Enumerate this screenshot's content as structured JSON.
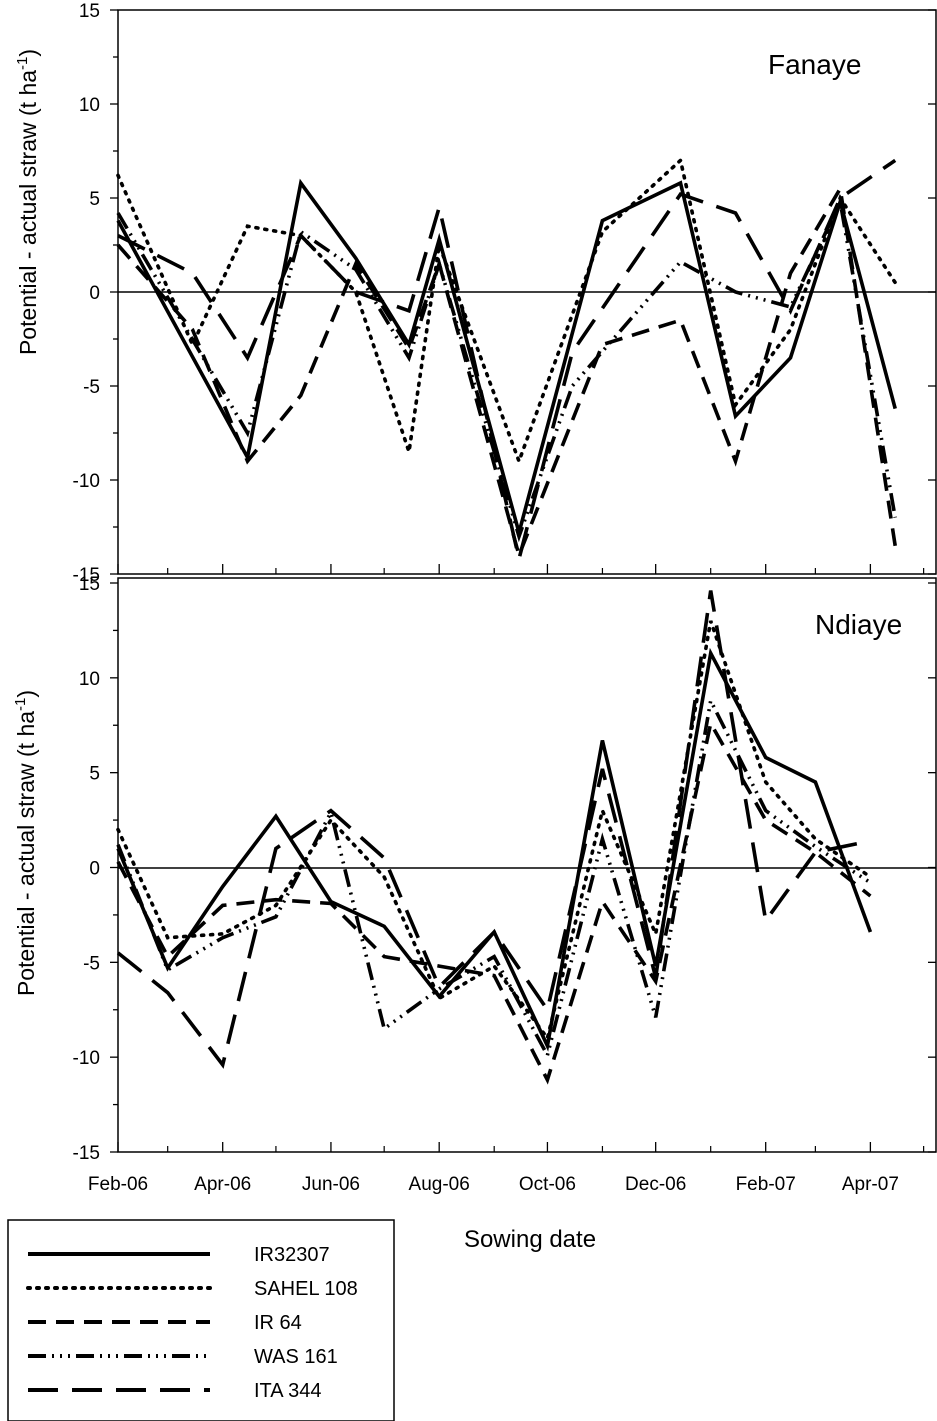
{
  "x_axis_label": "Sowing date",
  "chart_data": [
    {
      "type": "line",
      "title": "Fanaye",
      "ylabel": "Potential - actual straw  (t ha-1)",
      "ylim": [
        -15,
        15
      ],
      "yticks": [
        -15,
        -10,
        -5,
        0,
        5,
        10,
        15
      ],
      "xticks": [
        "Feb-06",
        "Apr-06",
        "Jun-06",
        "Aug-06",
        "Oct-06",
        "Dec-06",
        "Feb-07",
        "Apr-07"
      ],
      "series": [
        {
          "name": "IR32307",
          "x": [
            "2006-02-01",
            "2006-04-15",
            "2006-05-15",
            "2006-06-15",
            "2006-07-15",
            "2006-08-01",
            "2006-09-15",
            "2006-11-01",
            "2006-12-15",
            "2007-01-15",
            "2007-02-15",
            "2007-03-15",
            "2007-04-15"
          ],
          "values": [
            3.8,
            -8.8,
            5.8,
            1.8,
            -2.8,
            2.8,
            -12.8,
            3.8,
            5.8,
            -6.6,
            -3.5,
            4.8,
            -6.2
          ]
        },
        {
          "name": "SAHEL 108",
          "x": [
            "2006-02-01",
            "2006-03-15",
            "2006-04-15",
            "2006-05-15",
            "2006-06-15",
            "2006-07-15",
            "2006-08-01",
            "2006-09-15",
            "2006-11-01",
            "2006-12-15",
            "2007-01-15",
            "2007-02-15",
            "2007-03-15",
            "2007-04-15"
          ],
          "values": [
            6.2,
            -2.8,
            3.5,
            3.0,
            0.0,
            -8.5,
            2.5,
            -9.0,
            3.2,
            7.0,
            -6.0,
            -2.0,
            5.0,
            0.5
          ]
        },
        {
          "name": "IR 64",
          "x": [
            "2006-02-01",
            "2006-03-15",
            "2006-04-15",
            "2006-05-15",
            "2006-06-15",
            "2006-07-15",
            "2006-08-01",
            "2006-09-15",
            "2006-11-01",
            "2006-12-15",
            "2007-01-15",
            "2007-02-15",
            "2007-03-15",
            "2007-04-15"
          ],
          "values": [
            2.5,
            -2.0,
            -9.0,
            -5.5,
            1.5,
            -3.0,
            1.5,
            -14.0,
            -2.8,
            -1.5,
            -9.0,
            1.0,
            5.5,
            -13.5
          ]
        },
        {
          "name": "WAS 161",
          "x": [
            "2006-02-01",
            "2006-04-15",
            "2006-05-15",
            "2006-06-15",
            "2006-07-15",
            "2006-08-01",
            "2006-09-15",
            "2006-10-15",
            "2006-12-15",
            "2007-01-15",
            "2007-02-15",
            "2007-03-15",
            "2007-04-15"
          ],
          "values": [
            4.2,
            -7.5,
            3.2,
            1.2,
            -3.5,
            1.5,
            -13.0,
            -5.0,
            1.6,
            0.0,
            -0.8,
            4.8,
            -12.0
          ]
        },
        {
          "name": "ITA 344",
          "x": [
            "2006-02-01",
            "2006-03-15",
            "2006-04-15",
            "2006-05-15",
            "2006-06-15",
            "2006-07-15",
            "2006-08-01",
            "2006-09-15",
            "2006-10-15",
            "2006-12-15",
            "2007-01-15",
            "2007-02-15",
            "2007-03-15",
            "2007-04-15"
          ],
          "values": [
            3.0,
            1.0,
            -3.5,
            3.0,
            0.0,
            -1.0,
            4.5,
            -14.2,
            -3.2,
            5.2,
            4.2,
            -1.0,
            5.0,
            7.0
          ]
        }
      ]
    },
    {
      "type": "line",
      "title": "Ndiaye",
      "ylabel": "Potential - actual straw (t ha-1)",
      "ylim": [
        -15,
        15
      ],
      "yticks": [
        -15,
        -10,
        -5,
        0,
        5,
        10,
        15
      ],
      "xticks": [
        "Feb-06",
        "Apr-06",
        "Jun-06",
        "Aug-06",
        "Oct-06",
        "Dec-06",
        "Feb-07",
        "Apr-07"
      ],
      "series": [
        {
          "name": "IR32307",
          "x": [
            "2006-02-01",
            "2006-03-01",
            "2006-04-01",
            "2006-05-01",
            "2006-06-01",
            "2006-07-01",
            "2006-08-01",
            "2006-09-01",
            "2006-10-01",
            "2006-11-01",
            "2006-12-01",
            "2007-01-01",
            "2007-02-01",
            "2007-03-01",
            "2007-04-01"
          ],
          "values": [
            1.0,
            -5.3,
            -1.0,
            2.7,
            -1.8,
            -3.1,
            -6.8,
            -3.4,
            -9.4,
            6.7,
            -5.2,
            11.3,
            5.8,
            4.5,
            -3.4
          ]
        },
        {
          "name": "SAHEL 108",
          "x": [
            "2006-02-01",
            "2006-03-01",
            "2006-04-01",
            "2006-05-01",
            "2006-06-01",
            "2006-07-01",
            "2006-08-01",
            "2006-09-01",
            "2006-10-01",
            "2006-11-01",
            "2006-12-01",
            "2007-01-01",
            "2007-02-01",
            "2007-03-01",
            "2007-04-01"
          ],
          "values": [
            2.0,
            -3.7,
            -3.5,
            -2.0,
            2.5,
            -0.5,
            -6.9,
            -5.2,
            -9.0,
            3.0,
            -3.5,
            13.0,
            4.5,
            1.5,
            -0.5
          ]
        },
        {
          "name": "IR 64",
          "x": [
            "2006-02-01",
            "2006-03-01",
            "2006-04-01",
            "2006-05-01",
            "2006-06-01",
            "2006-07-01",
            "2006-08-01",
            "2006-09-01",
            "2006-10-01",
            "2006-11-01",
            "2006-12-01",
            "2007-01-01",
            "2007-02-01",
            "2007-03-01",
            "2007-04-01"
          ],
          "values": [
            0.3,
            -4.7,
            -2.0,
            -1.7,
            -1.9,
            -4.7,
            -5.2,
            -5.7,
            -11.2,
            -1.8,
            -6.0,
            7.6,
            2.5,
            0.8,
            -1.5
          ]
        },
        {
          "name": "WAS 161",
          "x": [
            "2006-02-01",
            "2006-03-01",
            "2006-04-01",
            "2006-05-01",
            "2006-06-01",
            "2006-07-01",
            "2006-08-01",
            "2006-09-01",
            "2006-10-01",
            "2006-11-01",
            "2006-12-01",
            "2007-01-01",
            "2007-02-01",
            "2007-03-01",
            "2007-04-01"
          ],
          "values": [
            1.2,
            -5.4,
            -3.7,
            -2.6,
            2.9,
            -8.5,
            -6.4,
            -4.7,
            -9.9,
            1.5,
            -7.9,
            8.8,
            3.0,
            1.1,
            -0.8
          ]
        },
        {
          "name": "ITA 344",
          "x": [
            "2006-02-01",
            "2006-03-01",
            "2006-04-01",
            "2006-05-01",
            "2006-06-01",
            "2006-07-01",
            "2006-08-01",
            "2006-09-01",
            "2006-10-01",
            "2006-11-01",
            "2006-12-01",
            "2007-01-01",
            "2007-02-01",
            "2007-03-01",
            "2007-04-01"
          ],
          "values": [
            -4.5,
            -6.6,
            -10.4,
            1.0,
            3.0,
            0.5,
            -6.3,
            -3.4,
            -7.5,
            5.2,
            -5.8,
            14.6,
            -2.8,
            0.8,
            1.4
          ]
        }
      ]
    }
  ]
}
